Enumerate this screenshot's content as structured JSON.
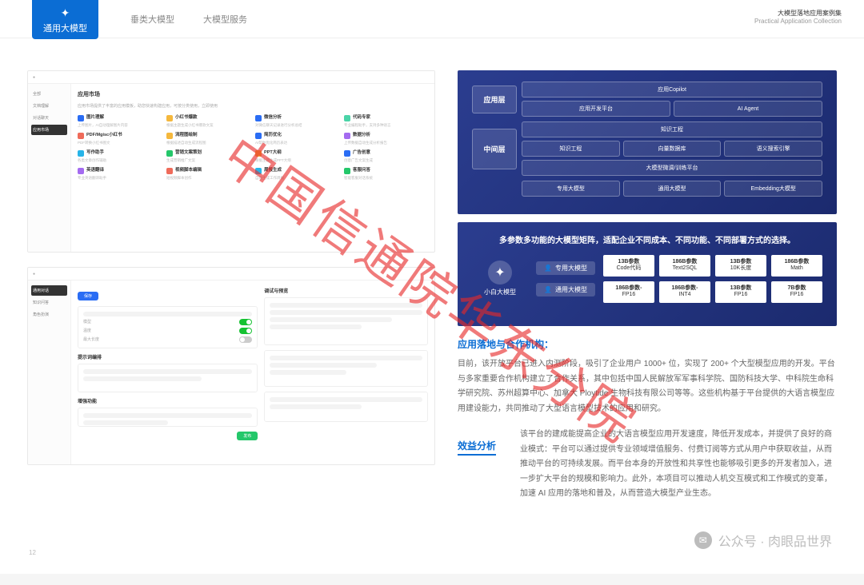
{
  "header": {
    "tab_active": "通用大模型",
    "tab2": "垂类大模型",
    "tab3": "大模型服务",
    "right_cn": "大模型落地应用案例集",
    "right_en": "Practical Application Collection"
  },
  "mock1": {
    "title": "应用市场",
    "subtitle": "应用市场提供了丰富的应用模板，助您快速构建应用，可按分类使用，立即使用",
    "side": [
      "全部",
      "文档理解",
      "对话聊天",
      "图像处理",
      "应用市场"
    ],
    "cards": [
      {
        "color": "#2a6df4",
        "t": "图片理解",
        "d": "上传图片，AI自动理解图片内容"
      },
      {
        "color": "#f5b83d",
        "t": "小红书爆款",
        "d": "根据主题生成小红书爆款文案"
      },
      {
        "color": "#2a6df4",
        "t": "微信分析",
        "d": "对微信聊天记录进行分析总结"
      },
      {
        "color": "#4bd4a8",
        "t": "代码专家",
        "d": "专业编程助手，支持多种语言"
      },
      {
        "color": "#ef6b5a",
        "t": "PDF/Mgisc小红书",
        "d": "PDF转换小红书图文"
      },
      {
        "color": "#f5b83d",
        "t": "流程图绘制",
        "d": "根据描述自动生成流程图"
      },
      {
        "color": "#2a6df4",
        "t": "简历优化",
        "d": "AI帮你优化简历表达"
      },
      {
        "color": "#a46bf0",
        "t": "数据分析",
        "d": "上传数据自动生成分析报告"
      },
      {
        "color": "#27b4e8",
        "t": "写作助手",
        "d": "各类文章创作辅助"
      },
      {
        "color": "#24c76a",
        "t": "营销文案策划",
        "d": "生成营销推广文案"
      },
      {
        "color": "#f5b83d",
        "t": "PPT大纲",
        "d": "根据主题生成PPT大纲"
      },
      {
        "color": "#2a6df4",
        "t": "广告创意",
        "d": "创意广告文案生成"
      },
      {
        "color": "#a46bf0",
        "t": "英语翻译",
        "d": "专业英语翻译助手"
      },
      {
        "color": "#ef6b5a",
        "t": "视频脚本编辑",
        "d": "短视频脚本创作"
      },
      {
        "color": "#27b4e8",
        "t": "周报生成",
        "d": "自动生成工作周报"
      },
      {
        "color": "#24c76a",
        "t": "客服问答",
        "d": "智能客服对话系统"
      }
    ]
  },
  "mock2": {
    "side": [
      "通用对话",
      "知识问答",
      "角色扮演"
    ],
    "panel1": "提示词编排",
    "panel2": "调试与预览",
    "panel3": "增强功能",
    "save": "保存",
    "publish": "发布"
  },
  "dia1": {
    "row1_label": "应用层",
    "row1_items": [
      "应用Copilot"
    ],
    "row1b_items": [
      "应用开发平台",
      "AI Agent"
    ],
    "row2_label": "中间层",
    "row2_items": [
      "知识工程"
    ],
    "row2b_items": [
      "知识工程",
      "向量数据库",
      "语义搜索引擎"
    ],
    "row2c_items": [
      "大模型微调/训练平台"
    ],
    "row3_items": [
      "专用大模型",
      "通用大模型",
      "Embedding大模型"
    ]
  },
  "dia2": {
    "title": "多参数多功能的大模型矩阵，适配企业不同成本、不同功能、不同部署方式的选择。",
    "left_icon_label": "小白大模型",
    "labels": [
      "专用大模型",
      "通用大模型"
    ],
    "params": [
      {
        "t": "13B参数",
        "s": "Code代码"
      },
      {
        "t": "186B参数",
        "s": "Text2SQL"
      },
      {
        "t": "13B参数",
        "s": "10K长度"
      },
      {
        "t": "186B参数",
        "s": "Math"
      },
      {
        "t": "186B参数-",
        "s": "FP16"
      },
      {
        "t": "186B参数-",
        "s": "INT4"
      },
      {
        "t": "13B参数",
        "s": "FP16"
      },
      {
        "t": "7B参数",
        "s": "FP16"
      }
    ]
  },
  "sections": {
    "s1_title": "应用落地与合作机构：",
    "s1_body": "目前，该开放平台已进入内测阶段，吸引了企业用户 1000+ 位，实现了 200+ 个大型模型应用的开发。平台与多家重要合作机构建立了合作关系，其中包括中国人民解放军军事科学院、国防科技大学、中科院生命科学研究院、苏州超算中心、加拿大 Ploytide 生物科技有限公司等等。这些机构基于平台提供的大语言模型应用建设能力，共同推动了大型语言模型技术的应用和研究。",
    "s2_title": "效益分析",
    "s2_body": "该平台的建成能提高企业的大语言模型应用开发速度，降低开发成本，并提供了良好的商业模式：平台可以通过提供专业领域增值服务、付费订阅等方式从用户中获取收益，从而推动平台的可持续发展。而平台本身的开放性和共享性也能够吸引更多的开发者加入，进一步扩大平台的规模和影响力。此外，本项目可以推动人机交互模式和工作模式的变革，加速 AI 应用的落地和普及，从而营造大模型产业生态。"
  },
  "page_num": "12",
  "footer": "公众号 · 肉眼品世界",
  "watermark": "中国信通院华东分院"
}
